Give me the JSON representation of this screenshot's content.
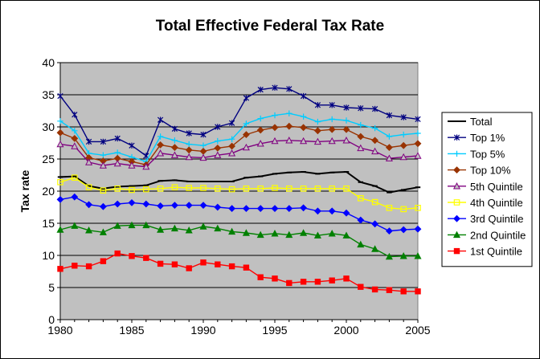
{
  "chart_data": {
    "type": "line",
    "title": "Total Effective Federal Tax Rate",
    "xlabel": "",
    "ylabel": "Tax rate",
    "xlim": [
      1980,
      2005
    ],
    "ylim": [
      0,
      40
    ],
    "x_ticks": [
      "1980",
      "1985",
      "1990",
      "1995",
      "2000",
      "2005"
    ],
    "y_ticks": [
      "0",
      "5",
      "10",
      "15",
      "20",
      "25",
      "30",
      "35",
      "40"
    ],
    "grid": true,
    "legend_position": "right",
    "plot_background": "#c0c0c0",
    "x": [
      1980,
      1981,
      1982,
      1983,
      1984,
      1985,
      1986,
      1987,
      1988,
      1989,
      1990,
      1991,
      1992,
      1993,
      1994,
      1995,
      1996,
      1997,
      1998,
      1999,
      2000,
      2001,
      2002,
      2003,
      2004,
      2005
    ],
    "series": [
      {
        "name": "Total",
        "color": "#000000",
        "marker": "dash",
        "values": [
          22.2,
          22.3,
          20.8,
          20.4,
          20.7,
          20.8,
          20.9,
          21.6,
          21.7,
          21.5,
          21.5,
          21.5,
          21.5,
          22.1,
          22.3,
          22.7,
          22.9,
          23.0,
          22.7,
          22.9,
          23.0,
          21.4,
          20.8,
          19.8,
          20.2,
          20.6
        ]
      },
      {
        "name": "Top 1%",
        "color": "#000080",
        "marker": "star",
        "values": [
          34.8,
          31.9,
          27.7,
          27.7,
          28.2,
          27.1,
          25.5,
          31.1,
          29.7,
          29.0,
          28.8,
          30.0,
          30.6,
          34.5,
          35.8,
          36.1,
          35.9,
          34.8,
          33.4,
          33.4,
          33.0,
          32.9,
          32.8,
          31.8,
          31.5,
          31.2
        ]
      },
      {
        "name": "Top 5%",
        "color": "#00ccff",
        "marker": "plus",
        "values": [
          30.9,
          29.4,
          25.9,
          25.6,
          26.0,
          25.3,
          24.6,
          28.5,
          27.9,
          27.3,
          27.1,
          27.8,
          28.1,
          30.5,
          31.3,
          31.8,
          32.1,
          31.6,
          30.8,
          31.2,
          31.0,
          30.3,
          29.8,
          28.5,
          28.8,
          29.0
        ]
      },
      {
        "name": "Top 10%",
        "color": "#993300",
        "marker": "diamond",
        "values": [
          29.1,
          28.2,
          25.2,
          24.7,
          25.1,
          24.6,
          24.1,
          27.2,
          26.8,
          26.4,
          26.2,
          26.7,
          27.0,
          28.8,
          29.5,
          29.9,
          30.1,
          29.9,
          29.4,
          29.6,
          29.6,
          28.5,
          27.9,
          26.8,
          27.1,
          27.4
        ]
      },
      {
        "name": "5th Quintile",
        "color": "#800080",
        "marker": "triangle-open",
        "values": [
          27.3,
          27.0,
          24.5,
          24.0,
          24.3,
          24.0,
          23.8,
          25.9,
          25.6,
          25.3,
          25.2,
          25.6,
          25.9,
          26.8,
          27.4,
          27.8,
          27.9,
          27.8,
          27.7,
          27.8,
          27.9,
          26.7,
          26.2,
          25.1,
          25.3,
          25.5
        ]
      },
      {
        "name": "4th Quintile",
        "color": "#ffff00",
        "marker": "square-open",
        "values": [
          21.4,
          22.1,
          20.6,
          20.1,
          20.4,
          20.2,
          20.3,
          20.4,
          20.6,
          20.5,
          20.5,
          20.4,
          20.3,
          20.4,
          20.4,
          20.5,
          20.4,
          20.4,
          20.4,
          20.4,
          20.4,
          18.9,
          18.3,
          17.4,
          17.2,
          17.4
        ]
      },
      {
        "name": "3rd Quintile",
        "color": "#0000ff",
        "marker": "diamond",
        "values": [
          18.7,
          19.1,
          17.9,
          17.6,
          18.0,
          18.2,
          18.0,
          17.7,
          17.8,
          17.8,
          17.8,
          17.5,
          17.3,
          17.3,
          17.3,
          17.3,
          17.3,
          17.4,
          16.9,
          16.9,
          16.6,
          15.5,
          14.9,
          13.8,
          14.0,
          14.1
        ]
      },
      {
        "name": "2nd Quintile",
        "color": "#008000",
        "marker": "triangle",
        "values": [
          14.0,
          14.6,
          13.9,
          13.6,
          14.6,
          14.7,
          14.7,
          14.0,
          14.2,
          13.9,
          14.5,
          14.2,
          13.7,
          13.5,
          13.2,
          13.4,
          13.2,
          13.5,
          13.1,
          13.4,
          13.1,
          11.7,
          11.0,
          9.8,
          9.9,
          9.9
        ]
      },
      {
        "name": "1st Quintile",
        "color": "#ff0000",
        "marker": "square",
        "values": [
          7.9,
          8.4,
          8.3,
          9.1,
          10.3,
          9.9,
          9.6,
          8.7,
          8.6,
          8.0,
          8.9,
          8.6,
          8.3,
          8.1,
          6.6,
          6.4,
          5.7,
          5.9,
          5.9,
          6.1,
          6.4,
          5.1,
          4.7,
          4.6,
          4.4,
          4.4
        ]
      }
    ]
  }
}
